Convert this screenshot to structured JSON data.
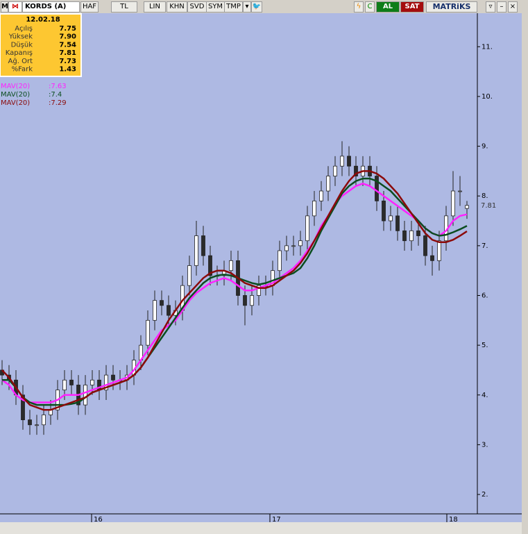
{
  "toolbar": {
    "symbol": "KORDS (A)",
    "buttons": [
      "HAF",
      "TL",
      "LIN",
      "KHN",
      "SVD",
      "SYM",
      "TMP"
    ],
    "buy": "AL",
    "sell": "SAT",
    "brand": "MATRiKS"
  },
  "info_box": {
    "date": "12.02.18",
    "rows": [
      {
        "label": "Açılış",
        "value": "7.75"
      },
      {
        "label": "Yüksek",
        "value": "7.90"
      },
      {
        "label": "Düşük",
        "value": "7.54"
      },
      {
        "label": "Kapanış",
        "value": "7.81"
      },
      {
        "label": "Ağ. Ort",
        "value": "7.73"
      },
      {
        "label": "%Fark",
        "value": "1.43"
      }
    ]
  },
  "chart_data": {
    "type": "candlestick",
    "open": [
      4.5,
      4.4,
      4.3,
      4.0,
      3.5,
      3.4,
      3.4,
      3.6,
      3.7,
      4.1,
      4.3,
      4.2,
      3.8,
      4.2,
      4.3,
      4.1,
      4.4,
      4.3,
      4.3,
      4.4,
      4.7,
      5.0,
      5.5,
      5.9,
      5.8,
      5.6,
      5.7,
      6.2,
      6.6,
      7.2,
      6.8,
      6.4,
      6.4,
      6.5,
      6.7,
      6.0,
      5.8,
      6.0,
      6.2,
      6.2,
      6.5,
      6.9,
      7.0,
      7.0,
      7.1,
      7.6,
      7.9,
      8.1,
      8.4,
      8.6,
      8.8,
      8.6,
      8.4,
      8.6,
      8.4,
      7.9,
      7.5,
      7.6,
      7.3,
      7.1,
      7.3,
      7.2,
      6.8,
      6.7,
      7.1,
      7.6,
      8.1,
      7.75
    ],
    "high": [
      4.7,
      4.6,
      4.5,
      4.2,
      3.7,
      3.6,
      3.8,
      3.9,
      4.3,
      4.5,
      4.5,
      4.4,
      4.4,
      4.5,
      4.5,
      4.6,
      4.6,
      4.5,
      4.6,
      4.9,
      5.2,
      5.7,
      6.1,
      6.1,
      6.0,
      5.9,
      6.4,
      6.8,
      7.5,
      7.4,
      7.0,
      6.6,
      6.7,
      6.9,
      6.9,
      6.2,
      6.2,
      6.4,
      6.4,
      6.7,
      7.1,
      7.2,
      7.2,
      7.3,
      7.8,
      8.1,
      8.3,
      8.6,
      8.8,
      9.1,
      9.0,
      8.8,
      8.8,
      8.8,
      8.6,
      8.1,
      7.8,
      7.8,
      7.5,
      7.5,
      7.5,
      7.4,
      7.0,
      7.3,
      7.8,
      8.5,
      8.4,
      7.9
    ],
    "low": [
      4.2,
      4.1,
      3.8,
      3.3,
      3.2,
      3.2,
      3.2,
      3.4,
      3.5,
      3.9,
      4.0,
      3.6,
      3.6,
      4.0,
      3.9,
      3.9,
      4.1,
      4.1,
      4.1,
      4.2,
      4.5,
      4.8,
      5.3,
      5.6,
      5.4,
      5.4,
      5.5,
      6.0,
      6.4,
      6.6,
      6.2,
      6.2,
      6.2,
      6.3,
      5.8,
      5.4,
      5.6,
      5.8,
      6.0,
      6.0,
      6.3,
      6.7,
      6.8,
      6.8,
      6.9,
      7.4,
      7.7,
      7.9,
      8.2,
      8.4,
      8.4,
      8.2,
      8.2,
      8.2,
      7.7,
      7.3,
      7.3,
      7.1,
      6.9,
      6.9,
      7.0,
      6.6,
      6.4,
      6.5,
      6.9,
      7.4,
      7.8,
      7.54
    ],
    "close": [
      4.4,
      4.3,
      4.0,
      3.5,
      3.4,
      3.4,
      3.6,
      3.7,
      4.1,
      4.3,
      4.2,
      3.8,
      4.2,
      4.3,
      4.1,
      4.4,
      4.3,
      4.3,
      4.4,
      4.7,
      5.0,
      5.5,
      5.9,
      5.8,
      5.6,
      5.7,
      6.2,
      6.6,
      7.2,
      6.8,
      6.4,
      6.4,
      6.5,
      6.7,
      6.0,
      5.8,
      6.0,
      6.2,
      6.2,
      6.5,
      6.9,
      7.0,
      7.0,
      7.1,
      7.6,
      7.9,
      8.1,
      8.4,
      8.6,
      8.8,
      8.6,
      8.4,
      8.6,
      8.4,
      7.9,
      7.5,
      7.6,
      7.3,
      7.1,
      7.3,
      7.2,
      6.8,
      6.7,
      7.1,
      7.6,
      8.1,
      8.1,
      7.81
    ],
    "series": [
      {
        "name": "MAV(20)",
        "color": "#ff22ff",
        "last_label": ":7.63",
        "values": [
          4.3,
          4.2,
          4.0,
          3.9,
          3.85,
          3.85,
          3.85,
          3.85,
          3.9,
          4.0,
          4.0,
          4.0,
          4.05,
          4.1,
          4.15,
          4.2,
          4.25,
          4.3,
          4.35,
          4.5,
          4.7,
          4.9,
          5.1,
          5.3,
          5.4,
          5.5,
          5.7,
          5.9,
          6.05,
          6.15,
          6.25,
          6.3,
          6.35,
          6.3,
          6.2,
          6.1,
          6.1,
          6.15,
          6.2,
          6.25,
          6.35,
          6.45,
          6.55,
          6.7,
          6.9,
          7.1,
          7.4,
          7.6,
          7.85,
          8.0,
          8.1,
          8.2,
          8.25,
          8.2,
          8.1,
          8.0,
          7.9,
          7.8,
          7.7,
          7.6,
          7.5,
          7.35,
          7.25,
          7.2,
          7.3,
          7.5,
          7.6,
          7.63
        ]
      },
      {
        "name": "MAV(20)",
        "color": "#0b4d1f",
        "last_label": ":7.4",
        "values": [
          4.3,
          4.3,
          4.15,
          3.95,
          3.85,
          3.8,
          3.8,
          3.8,
          3.8,
          3.8,
          3.82,
          3.85,
          3.95,
          4.05,
          4.1,
          4.15,
          4.2,
          4.25,
          4.3,
          4.4,
          4.55,
          4.75,
          4.95,
          5.15,
          5.35,
          5.55,
          5.75,
          5.95,
          6.1,
          6.25,
          6.35,
          6.4,
          6.42,
          6.4,
          6.35,
          6.3,
          6.25,
          6.22,
          6.25,
          6.3,
          6.35,
          6.4,
          6.45,
          6.55,
          6.75,
          7.0,
          7.3,
          7.55,
          7.8,
          8.05,
          8.2,
          8.3,
          8.35,
          8.35,
          8.3,
          8.2,
          8.1,
          7.95,
          7.8,
          7.65,
          7.5,
          7.35,
          7.25,
          7.2,
          7.22,
          7.27,
          7.33,
          7.4
        ]
      },
      {
        "name": "MAV(20)",
        "color": "#8b0a0a",
        "last_label": ":7.29",
        "values": [
          4.5,
          4.35,
          4.15,
          3.95,
          3.8,
          3.75,
          3.7,
          3.7,
          3.75,
          3.8,
          3.85,
          3.9,
          3.95,
          4.05,
          4.1,
          4.15,
          4.2,
          4.25,
          4.3,
          4.4,
          4.55,
          4.75,
          5.0,
          5.25,
          5.5,
          5.7,
          5.9,
          6.05,
          6.2,
          6.35,
          6.45,
          6.5,
          6.5,
          6.45,
          6.35,
          6.25,
          6.2,
          6.15,
          6.15,
          6.2,
          6.3,
          6.4,
          6.5,
          6.65,
          6.85,
          7.1,
          7.35,
          7.6,
          7.85,
          8.1,
          8.3,
          8.45,
          8.5,
          8.5,
          8.45,
          8.35,
          8.2,
          8.05,
          7.85,
          7.65,
          7.45,
          7.25,
          7.12,
          7.07,
          7.07,
          7.12,
          7.2,
          7.29
        ]
      }
    ],
    "xlim": [
      -0.3,
      68.5
    ],
    "xticks": [
      {
        "value": 12.9,
        "label": "16"
      },
      {
        "value": 38.6,
        "label": "17"
      },
      {
        "value": 64.1,
        "label": "18"
      }
    ],
    "ylim": [
      1.61,
      11.66
    ],
    "yticks": [
      {
        "value": 2,
        "label": "2."
      },
      {
        "value": 3,
        "label": "3."
      },
      {
        "value": 4,
        "label": "4."
      },
      {
        "value": 5,
        "label": "5."
      },
      {
        "value": 6,
        "label": "6."
      },
      {
        "value": 7,
        "label": "7."
      },
      {
        "value": 8,
        "label": "8."
      },
      {
        "value": 9,
        "label": "9."
      },
      {
        "value": 10,
        "label": "10."
      },
      {
        "value": 11,
        "label": "11."
      }
    ],
    "up_color": "#ffffff",
    "down_color": "#2b2b2b"
  }
}
